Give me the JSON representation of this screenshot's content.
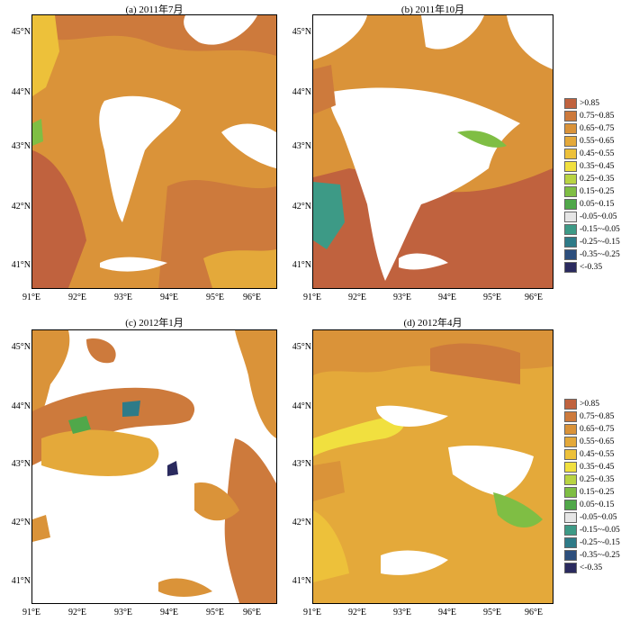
{
  "figure": {
    "panels": [
      {
        "id": "a",
        "title": "(a) 2011年7月"
      },
      {
        "id": "b",
        "title": "(b) 2011年10月"
      },
      {
        "id": "c",
        "title": "(c) 2012年1月"
      },
      {
        "id": "d",
        "title": "(d) 2012年4月"
      }
    ],
    "y_ticks": [
      "45°N",
      "44°N",
      "43°N",
      "42°N",
      "41°N"
    ],
    "x_ticks": [
      "91°E",
      "92°E",
      "93°E",
      "94°E",
      "95°E",
      "96°E"
    ],
    "legend": [
      {
        "label": ">0.85",
        "color": "#c0623e"
      },
      {
        "label": "0.75~0.85",
        "color": "#cd7a3c"
      },
      {
        "label": "0.65~0.75",
        "color": "#da9339"
      },
      {
        "label": "0.55~0.65",
        "color": "#e4a93a"
      },
      {
        "label": "0.45~0.55",
        "color": "#edc13a"
      },
      {
        "label": "0.35~0.45",
        "color": "#f1e03f"
      },
      {
        "label": "0.25~0.35",
        "color": "#b9d443"
      },
      {
        "label": "0.15~0.25",
        "color": "#7fbe44"
      },
      {
        "label": "0.05~0.15",
        "color": "#50a84a"
      },
      {
        "label": "-0.05~0.05",
        "color": "#e6e6e6"
      },
      {
        "label": "-0.15~-0.05",
        "color": "#3d9a86"
      },
      {
        "label": "-0.25~-0.15",
        "color": "#2e7b88"
      },
      {
        "label": "-0.35~-0.25",
        "color": "#2d4f7d"
      },
      {
        "label": "<-0.35",
        "color": "#2a2a5e"
      }
    ]
  }
}
